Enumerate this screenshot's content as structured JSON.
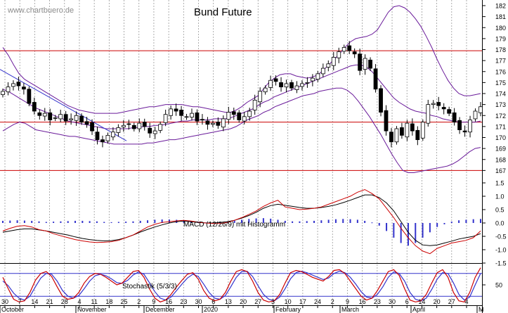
{
  "watermark": "www.chartbuero.de",
  "chart_data": [
    {
      "type": "candlestick",
      "title": "Bund Future",
      "ylim": [
        166,
        182
      ],
      "y_ticks": [
        "167",
        "168",
        "169",
        "170",
        "171",
        "172",
        "173",
        "174",
        "175",
        "176",
        "177",
        "178",
        "179",
        "180",
        "181",
        "182"
      ],
      "y_tick_values": [
        167,
        168,
        169,
        170,
        171,
        172,
        173,
        174,
        175,
        176,
        177,
        178,
        179,
        180,
        181,
        182
      ],
      "horizontal_lines": [
        177.9,
        171.4,
        167.0
      ],
      "colors": {
        "candle_up": "#ffffff",
        "candle_down": "#000000",
        "bollinger": "#6a1b9a",
        "trendline": "#3333cc",
        "support_resistance": "#cc0000",
        "gridline": "#999999"
      },
      "series": [
        {
          "kind": "close",
          "values": [
            174.2,
            174.6,
            174.9,
            174.7,
            174.4,
            173.1,
            172.4,
            172.0,
            172.2,
            171.6,
            171.8,
            172.1,
            171.5,
            171.7,
            172.0,
            171.4,
            171.2,
            170.6,
            169.8,
            169.6,
            170.2,
            170.5,
            170.9,
            171.1,
            171.2,
            170.8,
            171.3,
            171.0,
            170.4,
            170.6,
            171.2,
            172.1,
            172.6,
            172.4,
            172.0,
            171.9,
            172.2,
            171.5,
            171.6,
            171.2,
            171.3,
            171.1,
            171.7,
            172.3,
            172.1,
            171.6,
            171.9,
            172.4,
            173.4,
            174.2,
            174.5,
            175.2,
            175.1,
            174.6,
            174.9,
            174.5,
            174.7,
            174.9,
            175.0,
            175.4,
            175.8,
            176.3,
            176.7,
            177.3,
            177.8,
            178.2,
            177.9,
            177.6,
            176.1,
            177.2,
            176.3,
            174.4,
            172.3,
            170.6,
            169.6,
            170.8,
            170.2,
            171.3,
            170.6,
            169.8,
            171.4,
            173.0,
            173.1,
            172.9,
            172.6,
            172.2,
            171.4,
            170.7,
            170.5,
            171.6,
            172.4,
            172.8
          ]
        },
        {
          "kind": "bollinger_upper",
          "values": [
            178.2,
            177.5,
            176.6,
            175.8,
            175.3,
            175.0,
            174.7,
            174.4,
            174.1,
            173.8,
            173.5,
            173.2,
            172.9,
            172.7,
            172.5,
            172.4,
            172.3,
            172.2,
            172.2,
            172.2,
            172.2,
            172.2,
            172.3,
            172.4,
            172.5,
            172.6,
            172.7,
            172.8,
            172.8,
            172.9,
            173.0,
            173.0,
            173.0,
            173.0,
            172.9,
            172.8,
            172.8,
            172.7,
            172.6,
            172.5,
            172.4,
            172.3,
            172.3,
            172.5,
            172.8,
            173.2,
            173.5,
            173.8,
            174.4,
            175.0,
            175.4,
            175.7,
            175.8,
            175.8,
            175.6,
            175.5,
            175.4,
            175.5,
            175.7,
            176.1,
            176.6,
            177.1,
            177.6,
            178.2,
            178.7,
            179.0,
            179.1,
            179.2,
            179.4,
            179.8,
            180.6,
            181.4,
            181.9,
            182.0,
            181.8,
            181.4,
            180.8,
            180.1,
            179.2,
            178.2,
            177.1,
            176.1,
            175.2,
            174.5,
            174.0,
            173.8,
            173.8,
            173.9,
            174.0
          ]
        },
        {
          "kind": "bollinger_middle",
          "values": [
            174.4,
            174.2,
            173.9,
            173.6,
            173.3,
            173.0,
            172.7,
            172.5,
            172.3,
            172.1,
            171.9,
            171.7,
            171.5,
            171.4,
            171.3,
            171.2,
            171.1,
            171.0,
            170.9,
            170.8,
            170.8,
            170.8,
            170.8,
            170.8,
            170.9,
            170.9,
            171.0,
            171.0,
            171.1,
            171.1,
            171.2,
            171.3,
            171.4,
            171.5,
            171.5,
            171.6,
            171.6,
            171.6,
            171.6,
            171.7,
            171.7,
            171.7,
            171.8,
            172.0,
            172.2,
            172.4,
            172.6,
            172.9,
            173.2,
            173.4,
            173.7,
            173.9,
            174.1,
            174.3,
            174.5,
            174.7,
            174.9,
            175.1,
            175.3,
            175.5,
            175.7,
            175.9,
            176.1,
            176.3,
            176.5,
            176.6,
            176.6,
            176.4,
            176.0,
            175.4,
            174.8,
            174.2,
            173.6,
            173.2,
            172.9,
            172.6,
            172.4,
            172.3,
            172.2,
            172.0,
            171.9,
            171.7,
            171.6,
            171.5,
            171.4,
            171.4,
            171.4,
            171.4,
            171.5
          ]
        },
        {
          "kind": "bollinger_lower",
          "values": [
            170.6,
            170.9,
            171.2,
            171.4,
            171.3,
            171.0,
            170.7,
            170.6,
            170.5,
            170.4,
            170.3,
            170.2,
            170.1,
            170.1,
            170.0,
            169.9,
            169.8,
            169.7,
            169.6,
            169.5,
            169.4,
            169.4,
            169.4,
            169.4,
            169.4,
            169.4,
            169.5,
            169.5,
            169.6,
            169.7,
            169.8,
            169.8,
            169.9,
            170.0,
            170.1,
            170.2,
            170.3,
            170.4,
            170.5,
            170.6,
            170.7,
            170.8,
            171.0,
            171.3,
            171.6,
            171.8,
            172.0,
            172.3,
            172.5,
            172.8,
            173.0,
            173.2,
            173.4,
            173.6,
            173.8,
            173.9,
            174.0,
            174.2,
            174.3,
            174.4,
            174.5,
            174.5,
            174.3,
            173.9,
            173.3,
            172.6,
            171.9,
            171.1,
            170.3,
            169.4,
            168.5,
            167.7,
            167.0,
            166.8,
            166.8,
            166.9,
            167.0,
            167.1,
            167.2,
            167.3,
            167.4,
            167.6,
            167.9,
            168.3,
            168.7,
            169.0,
            169.1
          ]
        }
      ]
    },
    {
      "type": "line",
      "label": "MACD (12/26/9) mit Histogramm",
      "ylim": [
        -1.5,
        1.5
      ],
      "y_ticks": [
        "1.5",
        "1.0",
        "0.5",
        "0.0",
        "-0.5",
        "-1.0",
        "-1.5"
      ],
      "y_tick_values": [
        1.5,
        1.0,
        0.5,
        0.0,
        -0.5,
        -1.0,
        -1.5
      ],
      "colors": {
        "macd": "#000000",
        "signal": "#cc0000",
        "histogram": "#3333cc"
      },
      "series": [
        {
          "name": "MACD",
          "values": [
            -0.35,
            -0.3,
            -0.25,
            -0.22,
            -0.22,
            -0.26,
            -0.3,
            -0.35,
            -0.4,
            -0.45,
            -0.52,
            -0.58,
            -0.62,
            -0.65,
            -0.67,
            -0.66,
            -0.62,
            -0.55,
            -0.45,
            -0.34,
            -0.24,
            -0.15,
            -0.07,
            0.0,
            0.05,
            0.07,
            0.05,
            0.02,
            0.0,
            0.0,
            0.02,
            0.05,
            0.1,
            0.18,
            0.28,
            0.4,
            0.55,
            0.65,
            0.7,
            0.66,
            0.62,
            0.58,
            0.55,
            0.55,
            0.58,
            0.62,
            0.68,
            0.76,
            0.85,
            0.95,
            1.05,
            1.05,
            0.95,
            0.75,
            0.45,
            0.05,
            -0.35,
            -0.65,
            -0.82,
            -0.85,
            -0.82,
            -0.75,
            -0.68,
            -0.6,
            -0.55,
            -0.5,
            -0.4
          ]
        },
        {
          "name": "Signal",
          "values": [
            -0.3,
            -0.2,
            -0.12,
            -0.1,
            -0.15,
            -0.25,
            -0.3,
            -0.4,
            -0.48,
            -0.55,
            -0.62,
            -0.67,
            -0.71,
            -0.73,
            -0.72,
            -0.7,
            -0.65,
            -0.55,
            -0.45,
            -0.3,
            -0.15,
            -0.05,
            0.02,
            0.05,
            0.08,
            0.1,
            0.07,
            0.03,
            0.0,
            -0.02,
            -0.02,
            0.02,
            0.1,
            0.2,
            0.32,
            0.45,
            0.62,
            0.75,
            0.85,
            0.6,
            0.55,
            0.5,
            0.52,
            0.55,
            0.6,
            0.7,
            0.8,
            0.9,
            1.0,
            1.15,
            1.25,
            1.1,
            0.9,
            0.55,
            0.2,
            -0.2,
            -0.55,
            -0.85,
            -1.05,
            -1.15,
            -0.95,
            -0.85,
            -0.75,
            -0.7,
            -0.65,
            -0.55,
            -0.3
          ]
        },
        {
          "name": "Histogramm",
          "values": [
            0.08,
            0.09,
            0.1,
            0.09,
            0.08,
            0.06,
            0.04,
            0.05,
            0.06,
            0.07,
            0.08,
            0.08,
            0.07,
            0.06,
            0.04,
            0.03,
            0.04,
            0.05,
            0.06,
            0.08,
            0.1,
            0.12,
            0.13,
            0.13,
            0.12,
            0.1,
            0.08,
            0.05,
            0.02,
            0.0,
            0.02,
            0.05,
            0.09,
            0.12,
            0.15,
            0.17,
            0.18,
            0.16,
            0.12,
            0.08,
            0.06,
            0.06,
            0.07,
            0.08,
            0.1,
            0.12,
            0.14,
            0.15,
            0.14,
            0.12,
            0.08,
            0.02,
            -0.1,
            -0.3,
            -0.55,
            -0.75,
            -0.85,
            -0.75,
            -0.55,
            -0.35,
            -0.15,
            -0.05,
            0.05,
            0.1,
            0.12,
            0.14,
            0.15
          ]
        }
      ]
    },
    {
      "type": "line",
      "label": "Stochastik (5/3/3)",
      "ylim": [
        0,
        100
      ],
      "y_ticks": [
        "50"
      ],
      "y_tick_values": [
        50
      ],
      "horizontal_lines": [
        80,
        20
      ],
      "colors": {
        "k": "#cc0000",
        "d": "#3333cc",
        "bands": "#3333cc"
      },
      "series": [
        {
          "name": "%K",
          "values": [
            70,
            40,
            12,
            5,
            8,
            30,
            62,
            80,
            85,
            72,
            45,
            20,
            12,
            15,
            30,
            55,
            72,
            80,
            78,
            70,
            60,
            50,
            55,
            70,
            85,
            88,
            70,
            40,
            15,
            5,
            10,
            25,
            45,
            62,
            78,
            82,
            65,
            35,
            15,
            8,
            12,
            30,
            60,
            85,
            90,
            85,
            60,
            30,
            10,
            5,
            8,
            25,
            55,
            82,
            88,
            85,
            78,
            70,
            65,
            60,
            72,
            88,
            90,
            80,
            60,
            40,
            20,
            10,
            15,
            35,
            60,
            85,
            90,
            75,
            40,
            10,
            5,
            8,
            25,
            55,
            82,
            90,
            70,
            30,
            8,
            5,
            30,
            70,
            95
          ]
        },
        {
          "name": "%D",
          "values": [
            60,
            48,
            28,
            15,
            10,
            20,
            45,
            68,
            80,
            78,
            60,
            35,
            20,
            15,
            22,
            40,
            60,
            74,
            78,
            74,
            66,
            56,
            54,
            62,
            76,
            84,
            78,
            56,
            32,
            15,
            10,
            18,
            35,
            52,
            68,
            78,
            72,
            52,
            30,
            15,
            12,
            22,
            45,
            70,
            85,
            86,
            72,
            48,
            25,
            12,
            8,
            18,
            40,
            66,
            82,
            86,
            82,
            76,
            70,
            64,
            68,
            80,
            86,
            82,
            70,
            52,
            32,
            18,
            15,
            25,
            45,
            70,
            84,
            80,
            60,
            30,
            12,
            8,
            15,
            38,
            65,
            82,
            80,
            55,
            25,
            10,
            18,
            50,
            80
          ]
        }
      ]
    }
  ],
  "x_axis": {
    "day_ticks": [
      "30",
      "7",
      "14",
      "21",
      "28",
      "4",
      "11",
      "18",
      "25",
      "2",
      "9",
      "16",
      "23",
      "30",
      "6",
      "13",
      "20",
      "27",
      "3",
      "10",
      "17",
      "24",
      "2",
      "9",
      "16",
      "23",
      "30",
      "6",
      "14",
      "20",
      "27",
      "4"
    ],
    "months": [
      "October",
      "November",
      "December",
      "2020",
      "February",
      "March",
      "April",
      "M"
    ]
  }
}
